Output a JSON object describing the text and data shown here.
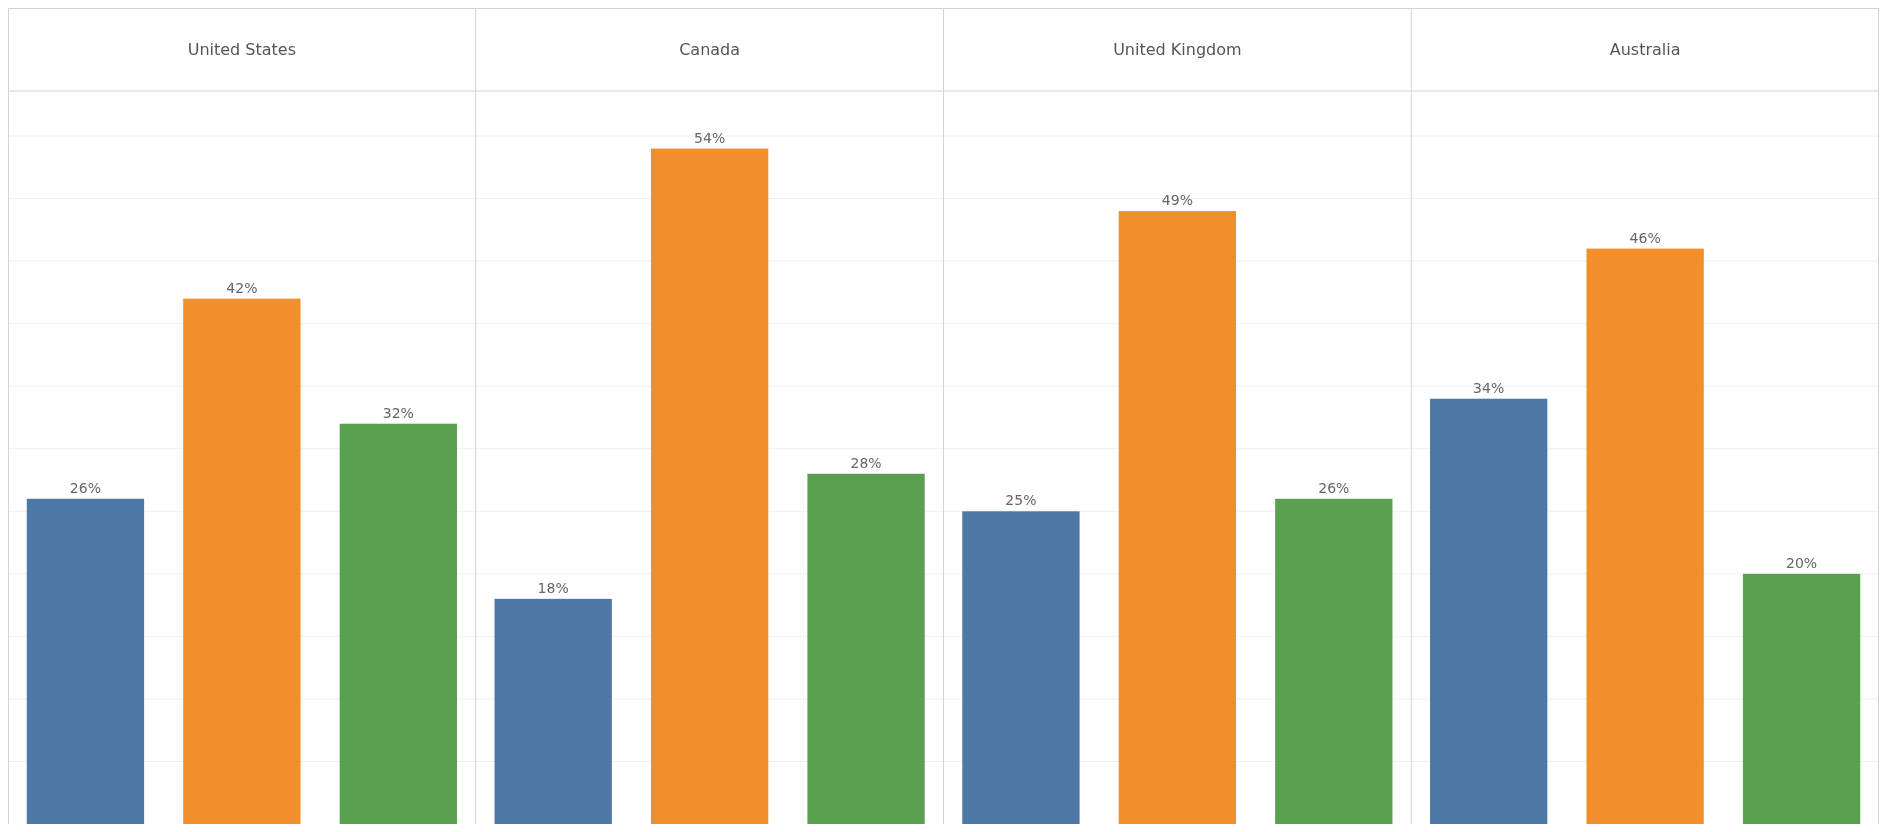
{
  "chart_data": [
    {
      "type": "bar",
      "title": "United States",
      "categories": [
        null,
        null,
        null
      ],
      "values": [
        26,
        42,
        32
      ],
      "colors": [
        "#4e79a7",
        "#f28e2b",
        "#59a14f"
      ],
      "value_labels": [
        "26%",
        "42%",
        "32%"
      ],
      "ylim": [
        0,
        58.6
      ],
      "yticks": [
        {
          "value": 5,
          "label": null
        },
        {
          "value": 10,
          "label": null
        },
        {
          "value": 15,
          "label": null
        },
        {
          "value": 20,
          "label": null
        },
        {
          "value": 25,
          "label": null
        },
        {
          "value": 30,
          "label": null
        },
        {
          "value": 35,
          "label": null
        },
        {
          "value": 40,
          "label": null
        },
        {
          "value": 45,
          "label": null
        },
        {
          "value": 50,
          "label": null
        },
        {
          "value": 55,
          "label": null
        }
      ],
      "grid": "y"
    },
    {
      "type": "bar",
      "title": "Canada",
      "categories": [
        null,
        null,
        null
      ],
      "values": [
        18,
        54,
        28
      ],
      "colors": [
        "#4e79a7",
        "#f28e2b",
        "#59a14f"
      ],
      "value_labels": [
        "18%",
        "54%",
        "28%"
      ],
      "ylim": [
        0,
        58.6
      ],
      "yticks": [
        {
          "value": 5,
          "label": null
        },
        {
          "value": 10,
          "label": null
        },
        {
          "value": 15,
          "label": null
        },
        {
          "value": 20,
          "label": null
        },
        {
          "value": 25,
          "label": null
        },
        {
          "value": 30,
          "label": null
        },
        {
          "value": 35,
          "label": null
        },
        {
          "value": 40,
          "label": null
        },
        {
          "value": 45,
          "label": null
        },
        {
          "value": 50,
          "label": null
        },
        {
          "value": 55,
          "label": null
        }
      ],
      "grid": "y"
    },
    {
      "type": "bar",
      "title": "United Kingdom",
      "categories": [
        null,
        null,
        null
      ],
      "values": [
        25,
        49,
        26
      ],
      "colors": [
        "#4e79a7",
        "#f28e2b",
        "#59a14f"
      ],
      "value_labels": [
        "25%",
        "49%",
        "26%"
      ],
      "ylim": [
        0,
        58.6
      ],
      "yticks": [
        {
          "value": 5,
          "label": null
        },
        {
          "value": 10,
          "label": null
        },
        {
          "value": 15,
          "label": null
        },
        {
          "value": 20,
          "label": null
        },
        {
          "value": 25,
          "label": null
        },
        {
          "value": 30,
          "label": null
        },
        {
          "value": 35,
          "label": null
        },
        {
          "value": 40,
          "label": null
        },
        {
          "value": 45,
          "label": null
        },
        {
          "value": 50,
          "label": null
        },
        {
          "value": 55,
          "label": null
        }
      ],
      "grid": "y"
    },
    {
      "type": "bar",
      "title": "Australia",
      "categories": [
        null,
        null,
        null
      ],
      "values": [
        34,
        46,
        20
      ],
      "colors": [
        "#4e79a7",
        "#f28e2b",
        "#59a14f"
      ],
      "value_labels": [
        "34%",
        "46%",
        "20%"
      ],
      "ylim": [
        0,
        58.6
      ],
      "yticks": [
        {
          "value": 5,
          "label": null
        },
        {
          "value": 10,
          "label": null
        },
        {
          "value": 15,
          "label": null
        },
        {
          "value": 20,
          "label": null
        },
        {
          "value": 25,
          "label": null
        },
        {
          "value": 30,
          "label": null
        },
        {
          "value": 35,
          "label": null
        },
        {
          "value": 40,
          "label": null
        },
        {
          "value": 45,
          "label": null
        },
        {
          "value": 50,
          "label": null
        },
        {
          "value": 55,
          "label": null
        }
      ],
      "grid": "y"
    }
  ]
}
